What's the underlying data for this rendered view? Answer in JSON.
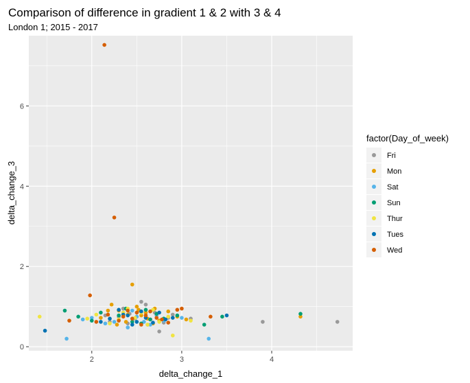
{
  "chart_data": {
    "type": "scatter",
    "title": "Comparison of difference in gradient 1 & 2 with 3 & 4",
    "subtitle": "London 1; 2015 - 2017",
    "xlabel": "delta_change_1",
    "ylabel": "delta_change_3",
    "xlim": [
      1.3,
      4.9
    ],
    "ylim": [
      -0.1,
      7.75
    ],
    "x_ticks": [
      2,
      3,
      4
    ],
    "y_ticks": [
      0,
      2,
      4,
      6
    ],
    "grid": true,
    "legend": {
      "title": "factor(Day_of_week)",
      "position": "right"
    },
    "series": [
      {
        "name": "Fri",
        "color": "#999999",
        "points": [
          [
            2.55,
            1.12
          ],
          [
            3.9,
            0.62
          ],
          [
            4.73,
            0.62
          ],
          [
            2.62,
            0.55
          ],
          [
            2.35,
            0.95
          ],
          [
            2.48,
            0.7
          ],
          [
            2.7,
            0.85
          ],
          [
            2.2,
            0.62
          ],
          [
            2.85,
            0.72
          ],
          [
            2.6,
            1.05
          ],
          [
            2.42,
            0.82
          ],
          [
            2.75,
            0.38
          ],
          [
            3.1,
            0.7
          ],
          [
            2.3,
            0.75
          ],
          [
            2.52,
            0.9
          ],
          [
            2.65,
            0.68
          ],
          [
            2.4,
            0.58
          ],
          [
            2.9,
            0.8
          ],
          [
            2.15,
            0.78
          ],
          [
            2.8,
            0.6
          ]
        ]
      },
      {
        "name": "Mon",
        "color": "#E69F00",
        "points": [
          [
            2.45,
            1.55
          ],
          [
            2.22,
            1.05
          ],
          [
            4.32,
            0.75
          ],
          [
            2.3,
            0.9
          ],
          [
            2.55,
            0.78
          ],
          [
            2.7,
            0.95
          ],
          [
            2.38,
            0.62
          ],
          [
            2.62,
            0.7
          ],
          [
            2.85,
            0.88
          ],
          [
            2.1,
            0.72
          ],
          [
            2.5,
            1.0
          ],
          [
            2.75,
            0.65
          ],
          [
            2.95,
            0.75
          ],
          [
            2.28,
            0.55
          ],
          [
            2.6,
            0.85
          ],
          [
            3.05,
            0.68
          ],
          [
            2.4,
            0.8
          ],
          [
            2.18,
            0.9
          ],
          [
            2.68,
            0.58
          ],
          [
            2.52,
            0.92
          ]
        ]
      },
      {
        "name": "Sat",
        "color": "#56B4E9",
        "points": [
          [
            1.72,
            0.2
          ],
          [
            3.3,
            0.2
          ],
          [
            2.0,
            0.72
          ],
          [
            2.25,
            0.62
          ],
          [
            2.5,
            0.75
          ],
          [
            2.8,
            0.65
          ],
          [
            2.35,
            0.85
          ],
          [
            2.65,
            0.55
          ],
          [
            1.9,
            0.68
          ],
          [
            2.45,
            0.9
          ],
          [
            2.72,
            0.78
          ],
          [
            2.15,
            0.58
          ],
          [
            2.58,
            0.62
          ],
          [
            3.0,
            0.72
          ],
          [
            2.4,
            0.48
          ]
        ]
      },
      {
        "name": "Sun",
        "color": "#009E73",
        "points": [
          [
            4.32,
            0.82
          ],
          [
            3.45,
            0.75
          ],
          [
            1.7,
            0.9
          ],
          [
            3.25,
            0.55
          ],
          [
            2.3,
            0.78
          ],
          [
            2.6,
            0.92
          ],
          [
            2.8,
            0.7
          ],
          [
            2.45,
            0.62
          ],
          [
            2.1,
            0.85
          ],
          [
            2.55,
            0.58
          ],
          [
            2.72,
            0.82
          ],
          [
            2.0,
            0.65
          ],
          [
            2.95,
            0.78
          ],
          [
            2.38,
            0.95
          ],
          [
            2.65,
            0.68
          ],
          [
            1.85,
            0.75
          ]
        ]
      },
      {
        "name": "Thur",
        "color": "#F0E442",
        "points": [
          [
            1.42,
            0.75
          ],
          [
            2.9,
            0.28
          ],
          [
            2.3,
            0.68
          ],
          [
            2.55,
            0.85
          ],
          [
            2.75,
            0.62
          ],
          [
            2.05,
            0.8
          ],
          [
            2.48,
            0.72
          ],
          [
            2.68,
            0.92
          ],
          [
            2.2,
            0.58
          ],
          [
            2.85,
            0.75
          ],
          [
            2.4,
            0.95
          ],
          [
            1.95,
            0.7
          ],
          [
            2.62,
            0.55
          ],
          [
            3.1,
            0.65
          ],
          [
            2.35,
            0.85
          ]
        ]
      },
      {
        "name": "Tues",
        "color": "#0072B2",
        "points": [
          [
            1.48,
            0.4
          ],
          [
            3.5,
            0.78
          ],
          [
            2.35,
            0.8
          ],
          [
            2.6,
            0.72
          ],
          [
            2.5,
            0.62
          ],
          [
            2.75,
            0.85
          ],
          [
            2.2,
            0.7
          ],
          [
            2.45,
            0.55
          ],
          [
            2.82,
            0.68
          ],
          [
            2.3,
            0.92
          ],
          [
            2.68,
            0.6
          ],
          [
            2.55,
            0.88
          ],
          [
            2.1,
            0.62
          ],
          [
            2.9,
            0.72
          ],
          [
            2.4,
            0.78
          ]
        ]
      },
      {
        "name": "Wed",
        "color": "#D55E00",
        "points": [
          [
            2.14,
            7.52
          ],
          [
            2.25,
            3.22
          ],
          [
            1.98,
            1.28
          ],
          [
            2.4,
            0.9
          ],
          [
            2.6,
            0.78
          ],
          [
            2.3,
            0.65
          ],
          [
            2.5,
            0.85
          ],
          [
            2.72,
            0.72
          ],
          [
            2.18,
            0.8
          ],
          [
            2.85,
            0.6
          ],
          [
            2.45,
            0.7
          ],
          [
            2.95,
            0.92
          ],
          [
            3.32,
            0.75
          ],
          [
            2.65,
            0.88
          ],
          [
            2.05,
            0.62
          ],
          [
            2.55,
            0.55
          ],
          [
            2.35,
            0.75
          ],
          [
            3.0,
            0.95
          ],
          [
            1.75,
            0.65
          ],
          [
            2.78,
            0.68
          ]
        ]
      }
    ]
  }
}
